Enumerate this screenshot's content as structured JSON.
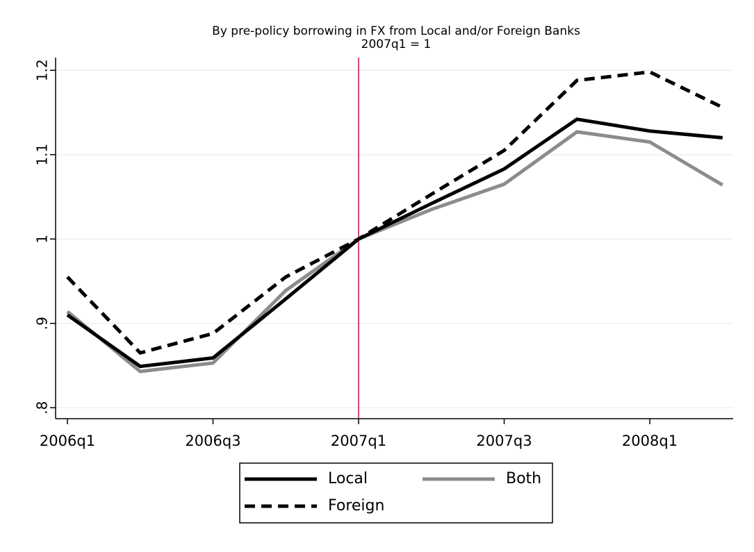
{
  "chart_data": {
    "type": "line",
    "title": "By pre-policy borrowing in FX from Local and/or Foreign Banks",
    "subtitle": "2007q1 = 1",
    "categories": [
      "2006q1",
      null,
      "2006q3",
      null,
      "2007q1",
      null,
      "2007q3",
      null,
      "2008q1",
      null
    ],
    "series": [
      {
        "name": "Local",
        "color": "#000000",
        "dashed": false,
        "values": [
          0.91,
          0.849,
          0.859,
          0.929,
          1.0,
          1.042,
          1.083,
          1.142,
          1.128,
          1.12
        ]
      },
      {
        "name": "Both",
        "color": "#8c8c8c",
        "dashed": false,
        "values": [
          0.914,
          0.843,
          0.853,
          0.939,
          1.0,
          1.035,
          1.065,
          1.127,
          1.115,
          1.064
        ]
      },
      {
        "name": "Foreign",
        "color": "#000000",
        "dashed": true,
        "values": [
          0.955,
          0.865,
          0.888,
          0.955,
          1.0,
          1.053,
          1.105,
          1.188,
          1.198,
          1.156
        ]
      }
    ],
    "reference_line": {
      "x": "2007q1",
      "color": "#c0143c"
    },
    "ylim": [
      0.787,
      1.215
    ],
    "yticks": [
      {
        "value": 0.8,
        "label": ".8"
      },
      {
        "value": 0.9,
        "label": ".9"
      },
      1,
      1.1,
      1.2
    ],
    "grid": true
  }
}
